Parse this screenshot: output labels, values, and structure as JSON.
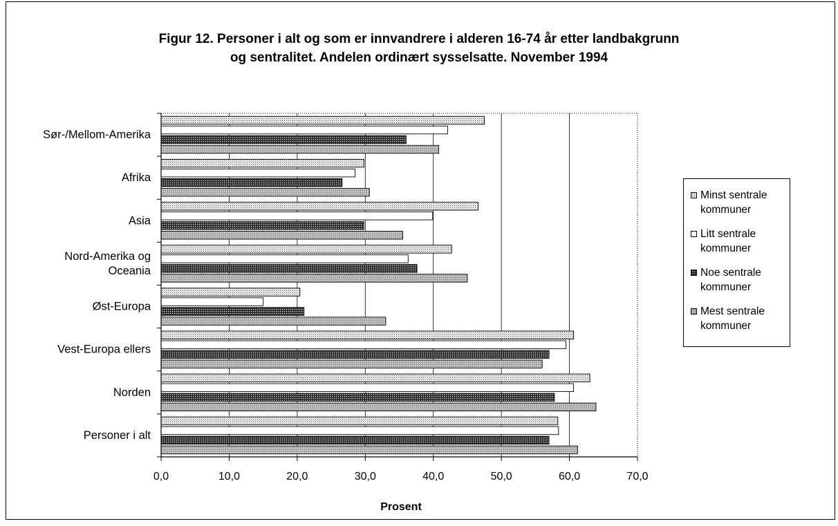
{
  "title_line1": "Figur 12.  Personer i alt og som er innvandrere i alderen 16-74 år etter landbakgrunn",
  "title_line2": "og sentralitet. Andelen ordinært sysselsatte. November 1994",
  "legend": [
    {
      "line1": "Minst sentrale",
      "line2": "kommuner"
    },
    {
      "line1": "Litt sentrale",
      "line2": "kommuner"
    },
    {
      "line1": "Noe sentrale",
      "line2": "kommuner"
    },
    {
      "line1": "Mest sentrale",
      "line2": "kommuner"
    }
  ],
  "chart_data": {
    "type": "bar",
    "orientation": "horizontal",
    "title": "Figur 12.  Personer i alt og som er innvandrere i alderen 16-74 år etter landbakgrunn og sentralitet. Andelen ordinært sysselsatte. November 1994",
    "xlabel": "Prosent",
    "ylabel": "",
    "xlim": [
      0,
      70
    ],
    "xticks": [
      "0,0",
      "10,0",
      "20,0",
      "30,0",
      "40,0",
      "50,0",
      "60,0",
      "70,0"
    ],
    "grid": "vertical",
    "legend_position": "right",
    "categories": [
      [
        "Sør-/Mellom-Amerika"
      ],
      [
        "Afrika"
      ],
      [
        "Asia"
      ],
      [
        "Nord-Amerika og",
        "Oceania"
      ],
      [
        "Øst-Europa"
      ],
      [
        "Vest-Europa ellers"
      ],
      [
        "Norden"
      ],
      [
        "Personer i alt"
      ]
    ],
    "series": [
      {
        "name": "Minst sentrale kommuner",
        "values": [
          47.5,
          29.8,
          46.6,
          42.7,
          20.4,
          60.6,
          63.0,
          58.3
        ]
      },
      {
        "name": "Litt sentrale kommuner",
        "values": [
          42.1,
          28.5,
          39.9,
          36.3,
          15.0,
          59.5,
          60.6,
          58.4
        ]
      },
      {
        "name": "Noe sentrale kommuner",
        "values": [
          36.0,
          26.6,
          29.8,
          37.6,
          21.0,
          57.0,
          57.8,
          57.0
        ]
      },
      {
        "name": "Mest sentrale kommuner",
        "values": [
          40.8,
          30.6,
          35.5,
          45.0,
          33.0,
          56.0,
          63.9,
          61.2
        ]
      }
    ]
  }
}
